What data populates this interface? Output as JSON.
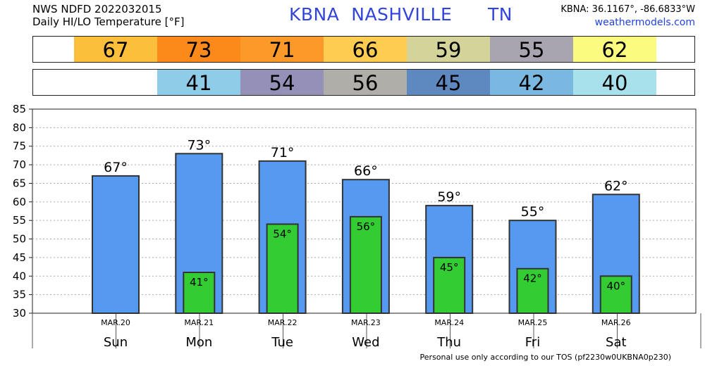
{
  "header": {
    "line1": "NWS NDFD 2022032015",
    "line2": "Daily HI/LO Temperature [°F]",
    "title": "KBNA  NASHVILLE      TN",
    "coords": "KBNA: 36.1167°, -86.6833°W",
    "site": "weathermodels.com"
  },
  "footer": "Personal use only according to our TOS (pf2230w0UKBNA0p230)",
  "colors": {
    "hi_bar": "#5599f0",
    "lo_bar": "#33cc33",
    "bar_stroke": "#333333"
  },
  "hi_strip": [
    {
      "value": "67",
      "color": "#fbbf3c"
    },
    {
      "value": "73",
      "color": "#fb8a1a"
    },
    {
      "value": "71",
      "color": "#fb9a28"
    },
    {
      "value": "66",
      "color": "#fdcc50"
    },
    {
      "value": "59",
      "color": "#d4d49a"
    },
    {
      "value": "55",
      "color": "#a8a4b0"
    },
    {
      "value": "62",
      "color": "#fbfb80"
    }
  ],
  "lo_strip": [
    {
      "value": "",
      "color": "#ffffff"
    },
    {
      "value": "41",
      "color": "#8ecce8"
    },
    {
      "value": "54",
      "color": "#9490b8"
    },
    {
      "value": "56",
      "color": "#b0aea8"
    },
    {
      "value": "45",
      "color": "#5e88c0"
    },
    {
      "value": "42",
      "color": "#7ab8e2"
    },
    {
      "value": "40",
      "color": "#a8e0ec"
    }
  ],
  "chart_data": {
    "type": "bar",
    "ylim": [
      30,
      85
    ],
    "yticks": [
      "30",
      "35",
      "40",
      "45",
      "50",
      "55",
      "60",
      "65",
      "70",
      "75",
      "80",
      "85"
    ],
    "grid": true,
    "dates": [
      "MAR.20",
      "MAR.21",
      "MAR.22",
      "MAR.23",
      "MAR.24",
      "MAR.25",
      "MAR.26"
    ],
    "categories": [
      "Sun",
      "Mon",
      "Tue",
      "Wed",
      "Thu",
      "Fri",
      "Sat"
    ],
    "series": [
      {
        "values": [
          67,
          73,
          71,
          66,
          59,
          55,
          62
        ],
        "labels": [
          "67°",
          "73°",
          "71°",
          "66°",
          "59°",
          "55°",
          "62°"
        ]
      },
      {
        "values": [
          null,
          41,
          54,
          56,
          45,
          42,
          40
        ],
        "labels": [
          "",
          "41°",
          "54°",
          "56°",
          "45°",
          "42°",
          "40°"
        ]
      }
    ]
  }
}
